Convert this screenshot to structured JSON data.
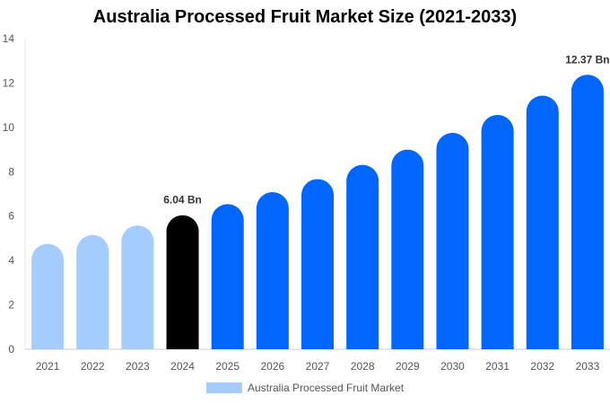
{
  "chart_data": {
    "type": "bar",
    "title": "Australia Processed Fruit Market Size (2021-2033)",
    "categories": [
      "2021",
      "2022",
      "2023",
      "2024",
      "2025",
      "2026",
      "2027",
      "2028",
      "2029",
      "2030",
      "2031",
      "2032",
      "2033"
    ],
    "series": [
      {
        "name": "Australia Processed Fruit Market",
        "values": [
          4.75,
          5.15,
          5.58,
          6.04,
          6.54,
          7.08,
          7.67,
          8.31,
          9.0,
          9.75,
          10.56,
          11.43,
          12.37
        ]
      }
    ],
    "data_labels": {
      "2024": "6.04 Bn",
      "2033": "12.37 Bn"
    },
    "ylim": [
      0,
      14
    ],
    "yticks": [
      0,
      2,
      4,
      6,
      8,
      10,
      12,
      14
    ],
    "grid": false,
    "legend_position": "bottom",
    "colors": {
      "historical": "#a4cdfd",
      "base_year": "#000000",
      "forecast": "#0066ff"
    }
  }
}
